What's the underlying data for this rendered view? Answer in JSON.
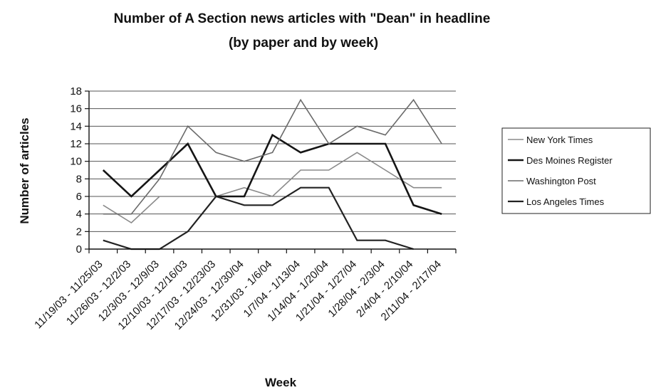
{
  "chart_data": {
    "type": "line",
    "title": "Number of A Section news articles with \"Dean\" in headline",
    "subtitle": "(by paper and by week)",
    "xlabel": "Week",
    "ylabel": "Number of articles",
    "ylim": [
      0,
      18
    ],
    "yticks": [
      0,
      2,
      4,
      6,
      8,
      10,
      12,
      14,
      16,
      18
    ],
    "grid": true,
    "legend_position": "right",
    "categories": [
      "11/19/03 - 11/25/03",
      "11/26/03 - 12/2/03",
      "12/3/03 - 12/9/03",
      "12/10/03 - 12/16/03",
      "12/17/03 - 12/23/03",
      "12/24/03 - 12/30/04",
      "12/31/03 - 1/6/04",
      "1/7/04 - 1/13/04",
      "1/14/04 - 1/20/04",
      "1/21/04 - 1/27/04",
      "1/28/04 - 2/3/04",
      "2/4/04 - 2/10/04",
      "2/11/04 - 2/17/04"
    ],
    "series": [
      {
        "name": "New York Times",
        "color": "#8a8a8a",
        "width": 1.6,
        "values": [
          5,
          3,
          6,
          6,
          6,
          7,
          6,
          9,
          9,
          11,
          9,
          7,
          7
        ]
      },
      {
        "name": "Des Moines Register",
        "color": "#151515",
        "width": 2.6,
        "values": [
          9,
          6,
          9,
          12,
          6,
          6,
          13,
          11,
          12,
          12,
          12,
          5,
          4
        ]
      },
      {
        "name": "Washington Post",
        "color": "#6a6a6a",
        "width": 1.6,
        "values": [
          4,
          4,
          8,
          14,
          11,
          10,
          11,
          17,
          12,
          14,
          13,
          17,
          12
        ]
      },
      {
        "name": "Los Angeles Times",
        "color": "#222222",
        "width": 2.2,
        "values": [
          1,
          0,
          0,
          2,
          6,
          5,
          5,
          7,
          7,
          1,
          1,
          0,
          null
        ]
      }
    ]
  }
}
